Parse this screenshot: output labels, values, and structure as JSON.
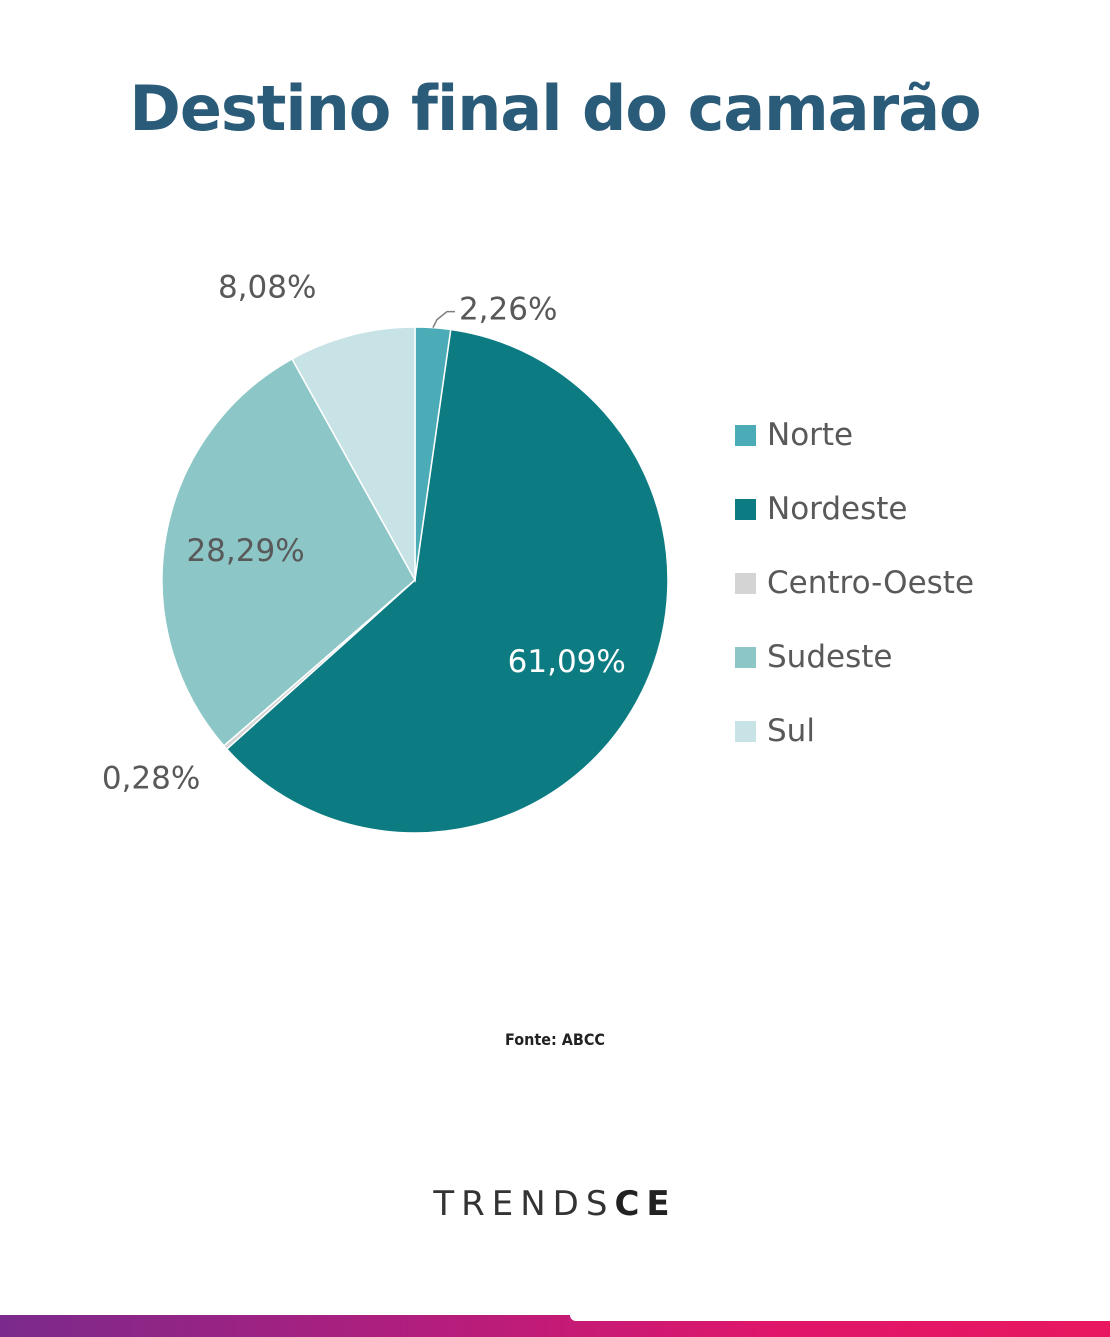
{
  "title": "Destino final do camarão",
  "source": "Fonte: ABCC",
  "logo": {
    "regular": "TRENDS",
    "bold": "CE"
  },
  "colors": {
    "title": "#2a5b79",
    "bar_start": "#7a2a8c",
    "bar_end": "#e8175f"
  },
  "chart_data": {
    "type": "pie",
    "legend_position": "right",
    "start_angle_deg": 0,
    "direction": "clockwise",
    "slices": [
      {
        "name": "Norte",
        "value": 2.26,
        "label": "2,26%",
        "color": "#4bacb7"
      },
      {
        "name": "Nordeste",
        "value": 61.09,
        "label": "61,09%",
        "color": "#0d7c82"
      },
      {
        "name": "Centro-Oeste",
        "value": 0.28,
        "label": "0,28%",
        "color": "#d4d4d4"
      },
      {
        "name": "Sudeste",
        "value": 28.29,
        "label": "28,29%",
        "color": "#8cc6c6"
      },
      {
        "name": "Sul",
        "value": 8.08,
        "label": "8,08%",
        "color": "#c7e3e6"
      }
    ]
  }
}
